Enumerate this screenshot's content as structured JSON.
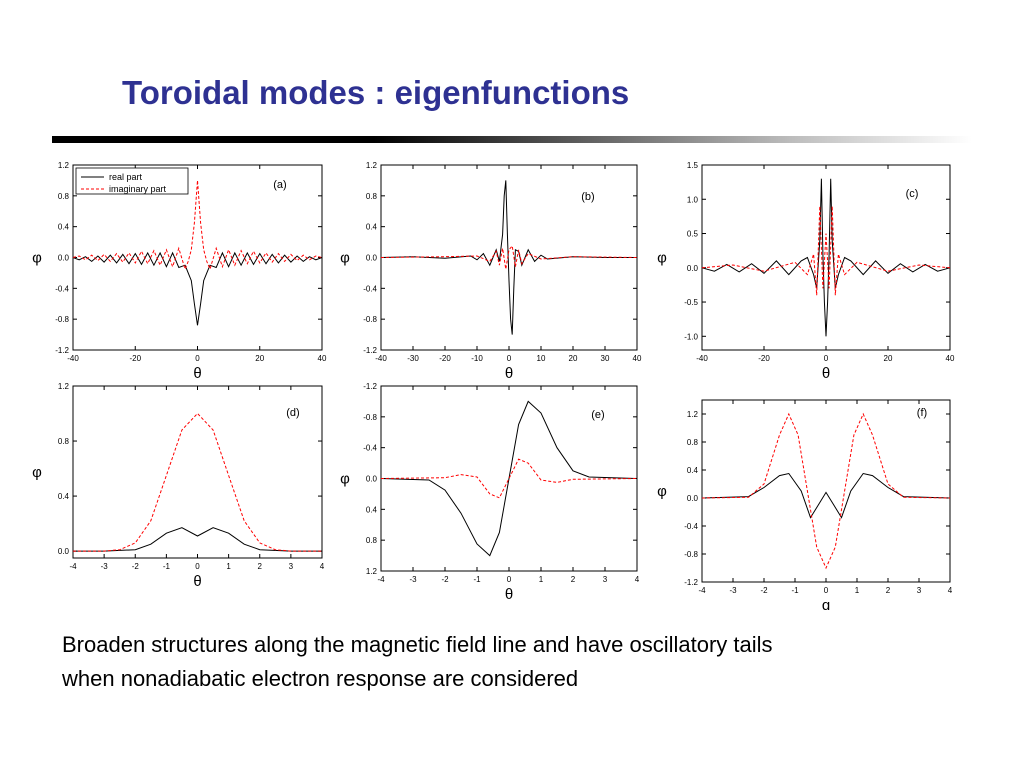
{
  "title": "Toroidal modes : eigenfunctions",
  "caption_line1": "Broaden structures along the magnetic field line and have oscillatory tails",
  "caption_line2": "when nonadiabatic electron response are considered",
  "colors": {
    "title": "#2e3192",
    "real": "#000000",
    "imag": "#ff0000"
  },
  "chart_data": [
    {
      "type": "line",
      "panel": "(a)",
      "xlabel": "θ",
      "ylabel": "φ",
      "xlim": [
        -40,
        40
      ],
      "ylim": [
        -1.2,
        1.2
      ],
      "xticks": [
        "-40",
        "-20",
        "0",
        "20",
        "40"
      ],
      "yticks": [
        "1.2",
        "0.8",
        "0.4",
        "0.0",
        "-0.4",
        "-0.8",
        "-1.2"
      ],
      "legend": [
        "real part",
        "imaginary part"
      ],
      "series": [
        {
          "name": "real part",
          "x": [
            -40,
            -38,
            -36,
            -34,
            -32,
            -30,
            -28,
            -26,
            -24,
            -22,
            -20,
            -18,
            -16,
            -14,
            -12,
            -10,
            -8,
            -6,
            -4,
            -3,
            -2,
            -1,
            0,
            1,
            2,
            3,
            4,
            6,
            8,
            10,
            12,
            14,
            16,
            18,
            20,
            22,
            24,
            26,
            28,
            30,
            32,
            34,
            36,
            38,
            40
          ],
          "y": [
            0.0,
            -0.03,
            0.01,
            -0.05,
            0.02,
            -0.06,
            0.03,
            -0.07,
            0.04,
            -0.08,
            0.05,
            -0.09,
            0.06,
            -0.1,
            0.06,
            -0.12,
            0.06,
            -0.13,
            -0.1,
            -0.2,
            -0.3,
            -0.6,
            -0.88,
            -0.6,
            -0.3,
            -0.2,
            -0.1,
            -0.13,
            0.06,
            -0.12,
            0.06,
            -0.1,
            0.06,
            -0.09,
            0.05,
            -0.08,
            0.04,
            -0.07,
            0.03,
            -0.06,
            0.02,
            -0.05,
            0.01,
            -0.03,
            0.0
          ]
        },
        {
          "name": "imaginary part",
          "x": [
            -40,
            -38,
            -36,
            -34,
            -32,
            -30,
            -28,
            -26,
            -24,
            -22,
            -20,
            -18,
            -16,
            -14,
            -12,
            -10,
            -8,
            -6,
            -4,
            -3,
            -2,
            -1,
            0,
            1,
            2,
            3,
            4,
            6,
            8,
            10,
            12,
            14,
            16,
            18,
            20,
            22,
            24,
            26,
            28,
            30,
            32,
            34,
            36,
            38,
            40
          ],
          "y": [
            0.0,
            0.02,
            -0.03,
            0.03,
            -0.04,
            0.04,
            -0.05,
            0.05,
            -0.06,
            0.06,
            -0.07,
            0.08,
            -0.08,
            0.09,
            -0.1,
            0.1,
            -0.12,
            0.12,
            -0.15,
            -0.05,
            0.1,
            0.45,
            1.0,
            0.45,
            0.1,
            -0.05,
            -0.15,
            0.12,
            -0.12,
            0.1,
            -0.1,
            0.09,
            -0.08,
            0.08,
            -0.07,
            0.06,
            -0.06,
            0.05,
            -0.05,
            0.04,
            -0.04,
            0.03,
            -0.03,
            0.02,
            0.0
          ]
        }
      ]
    },
    {
      "type": "line",
      "panel": "(b)",
      "xlabel": "θ",
      "ylabel": "φ",
      "xlim": [
        -40,
        40
      ],
      "ylim": [
        -1.2,
        1.2
      ],
      "xticks": [
        "-40",
        "-30",
        "-20",
        "-10",
        "0",
        "10",
        "20",
        "30",
        "40"
      ],
      "yticks": [
        "1.2",
        "0.8",
        "0.4",
        "0.0",
        "-0.4",
        "-0.8",
        "-1.2"
      ],
      "series": [
        {
          "name": "real",
          "x": [
            -40,
            -30,
            -20,
            -12,
            -10,
            -8,
            -6,
            -4,
            -3,
            -2,
            -1.5,
            -1,
            -0.5,
            0,
            0.5,
            1,
            1.5,
            2,
            3,
            4,
            6,
            8,
            10,
            12,
            20,
            30,
            40
          ],
          "y": [
            0.0,
            0.01,
            -0.01,
            0.02,
            -0.03,
            0.05,
            -0.1,
            0.1,
            -0.05,
            0.3,
            0.8,
            1.0,
            0.3,
            -0.3,
            -0.8,
            -1.0,
            -0.4,
            0.1,
            0.08,
            -0.1,
            0.1,
            -0.05,
            0.03,
            -0.02,
            0.01,
            0.0,
            0.0
          ]
        },
        {
          "name": "imag",
          "x": [
            -40,
            -20,
            -10,
            -6,
            -4,
            -3,
            -2,
            -1,
            0,
            1,
            2,
            3,
            4,
            6,
            10,
            20,
            40
          ],
          "y": [
            0.0,
            0.01,
            0.02,
            -0.05,
            0.08,
            -0.1,
            0.12,
            -0.15,
            0.1,
            0.15,
            -0.12,
            0.1,
            -0.08,
            0.05,
            -0.02,
            0.01,
            0.0
          ]
        }
      ]
    },
    {
      "type": "line",
      "panel": "(c)",
      "xlabel": "θ",
      "ylabel": "φ",
      "xlim": [
        -40,
        40
      ],
      "ylim": [
        -1.2,
        1.5
      ],
      "xticks": [
        "-40",
        "-20",
        "0",
        "20",
        "40"
      ],
      "yticks": [
        "1.5",
        "1.0",
        "0.5",
        "0.0",
        "-0.5",
        "-1.0"
      ],
      "series": [
        {
          "name": "real",
          "x": [
            -40,
            -36,
            -32,
            -28,
            -24,
            -20,
            -16,
            -12,
            -8,
            -6,
            -4,
            -3,
            -2,
            -1.5,
            -1,
            -0.5,
            0,
            0.5,
            1,
            1.5,
            2,
            3,
            4,
            6,
            8,
            12,
            16,
            20,
            24,
            28,
            32,
            36,
            40
          ],
          "y": [
            0.0,
            -0.05,
            0.05,
            -0.06,
            0.06,
            -0.08,
            0.1,
            -0.1,
            0.1,
            0.15,
            -0.1,
            -0.3,
            0.4,
            1.3,
            0.2,
            -0.5,
            -1.0,
            -0.5,
            0.2,
            1.3,
            0.4,
            -0.3,
            -0.1,
            0.15,
            0.1,
            -0.1,
            0.1,
            -0.08,
            0.06,
            -0.06,
            0.05,
            -0.05,
            0.0
          ]
        },
        {
          "name": "imag",
          "x": [
            -40,
            -30,
            -20,
            -10,
            -6,
            -4,
            -3,
            -2,
            -1,
            0,
            1,
            2,
            3,
            4,
            6,
            10,
            20,
            30,
            40
          ],
          "y": [
            0.0,
            0.04,
            -0.05,
            0.08,
            -0.1,
            0.2,
            -0.4,
            0.9,
            -0.3,
            0.5,
            -0.3,
            0.9,
            -0.4,
            0.2,
            -0.1,
            0.08,
            -0.05,
            0.04,
            0.0
          ]
        }
      ]
    },
    {
      "type": "line",
      "panel": "(d)",
      "xlabel": "θ",
      "ylabel": "φ",
      "xlim": [
        -4,
        4
      ],
      "ylim": [
        -0.05,
        1.2
      ],
      "xticks": [
        "-4",
        "-3",
        "-2",
        "-1",
        "0",
        "1",
        "2",
        "3",
        "4"
      ],
      "yticks": [
        "1.2",
        "0.8",
        "0.4",
        "0.0"
      ],
      "series": [
        {
          "name": "real",
          "x": [
            -4,
            -3,
            -2,
            -1.5,
            -1,
            -0.5,
            0,
            0.5,
            1,
            1.5,
            2,
            3,
            4
          ],
          "y": [
            0.0,
            0.0,
            0.01,
            0.05,
            0.13,
            0.17,
            0.11,
            0.17,
            0.13,
            0.05,
            0.01,
            0.0,
            0.0
          ]
        },
        {
          "name": "imag",
          "x": [
            -4,
            -3,
            -2.5,
            -2,
            -1.5,
            -1,
            -0.5,
            0,
            0.5,
            1,
            1.5,
            2,
            2.5,
            3,
            4
          ],
          "y": [
            0.0,
            0.0,
            0.01,
            0.06,
            0.22,
            0.55,
            0.88,
            1.0,
            0.88,
            0.55,
            0.22,
            0.06,
            0.01,
            0.0,
            0.0
          ]
        }
      ]
    },
    {
      "type": "line",
      "panel": "(e)",
      "xlabel": "θ",
      "ylabel": "φ",
      "xlim": [
        -4,
        4
      ],
      "ylim": [
        -1.2,
        1.2
      ],
      "y_inverted": true,
      "xticks": [
        "-4",
        "-3",
        "-2",
        "-1",
        "0",
        "1",
        "2",
        "3",
        "4"
      ],
      "yticks": [
        "-1.2",
        "-0.8",
        "-0.4",
        "0.0",
        "0.4",
        "0.8",
        "1.2"
      ],
      "series": [
        {
          "name": "real",
          "x": [
            -4,
            -2.5,
            -2,
            -1.5,
            -1,
            -0.6,
            -0.3,
            0,
            0.3,
            0.6,
            1,
            1.5,
            2,
            2.5,
            4
          ],
          "y": [
            0.0,
            0.02,
            0.15,
            0.45,
            0.85,
            1.0,
            0.7,
            0.0,
            -0.7,
            -1.0,
            -0.85,
            -0.4,
            -0.1,
            -0.02,
            0.0
          ]
        },
        {
          "name": "imag",
          "x": [
            -4,
            -2,
            -1.5,
            -1,
            -0.6,
            -0.3,
            0,
            0.3,
            0.6,
            1,
            1.5,
            2,
            4
          ],
          "y": [
            0.0,
            -0.01,
            -0.05,
            -0.02,
            0.2,
            0.25,
            0.0,
            -0.25,
            -0.2,
            0.02,
            0.05,
            0.01,
            0.0
          ]
        }
      ]
    },
    {
      "type": "line",
      "panel": "(f)",
      "xlabel": "q",
      "ylabel": "φ",
      "xlim": [
        -4,
        4
      ],
      "ylim": [
        -1.2,
        1.4
      ],
      "xticks": [
        "-4",
        "-3",
        "-2",
        "-1",
        "0",
        "1",
        "2",
        "3",
        "4"
      ],
      "yticks": [
        "1.2",
        "0.8",
        "0.4",
        "0.0",
        "-0.4",
        "-0.8",
        "-1.2"
      ],
      "series": [
        {
          "name": "real",
          "x": [
            -4,
            -2.5,
            -2,
            -1.5,
            -1.2,
            -0.8,
            -0.5,
            -0.25,
            0,
            0.25,
            0.5,
            0.8,
            1.2,
            1.5,
            2,
            2.5,
            4
          ],
          "y": [
            0.0,
            0.02,
            0.15,
            0.32,
            0.35,
            0.1,
            -0.28,
            -0.1,
            0.08,
            -0.1,
            -0.28,
            0.1,
            0.35,
            0.32,
            0.15,
            0.02,
            0.0
          ]
        },
        {
          "name": "imag",
          "x": [
            -4,
            -2.5,
            -2,
            -1.5,
            -1.2,
            -0.9,
            -0.6,
            -0.3,
            0,
            0.3,
            0.6,
            0.9,
            1.2,
            1.5,
            2,
            2.5,
            4
          ],
          "y": [
            0.0,
            0.01,
            0.2,
            0.9,
            1.2,
            0.9,
            0.1,
            -0.7,
            -1.0,
            -0.7,
            0.1,
            0.9,
            1.2,
            0.9,
            0.2,
            0.01,
            0.0
          ]
        }
      ]
    }
  ]
}
